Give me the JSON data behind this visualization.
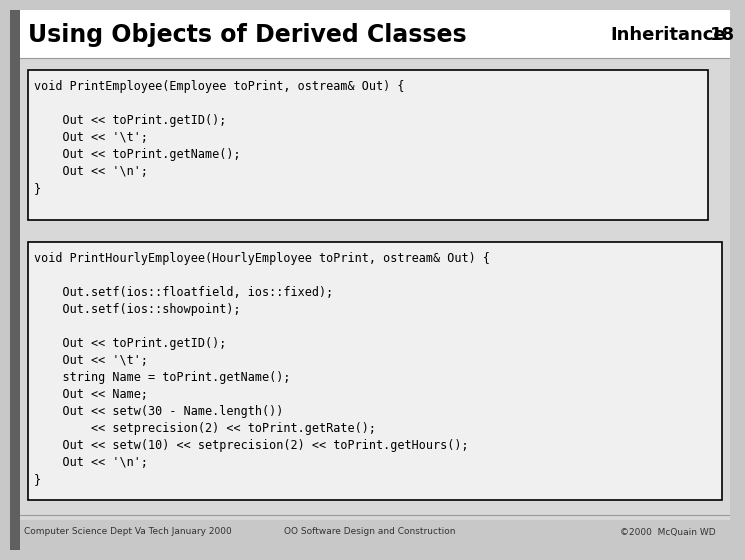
{
  "title": "Using Objects of Derived Classes",
  "title_right": "Inheritance",
  "slide_num": "18",
  "bg_color": "#c8c8c8",
  "content_bg": "#d8d8d8",
  "box_bg": "#f0f0f0",
  "box1_text": [
    "void PrintEmployee(Employee toPrint, ostream& Out) {",
    "",
    "    Out << toPrint.getID();",
    "    Out << '\\t';",
    "    Out << toPrint.getName();",
    "    Out << '\\n';",
    "}"
  ],
  "box2_text": [
    "void PrintHourlyEmployee(HourlyEmployee toPrint, ostream& Out) {",
    "",
    "    Out.setf(ios::floatfield, ios::fixed);",
    "    Out.setf(ios::showpoint);",
    "",
    "    Out << toPrint.getID();",
    "    Out << '\\t';",
    "    string Name = toPrint.getName();",
    "    Out << Name;",
    "    Out << setw(30 - Name.length())",
    "        << setprecision(2) << toPrint.getRate();",
    "    Out << setw(10) << setprecision(2) << toPrint.getHours();",
    "    Out << '\\n';",
    "}"
  ],
  "footer_left": "Computer Science Dept Va Tech January 2000",
  "footer_center": "OO Software Design and Construction",
  "footer_right": "©2000  McQuain WD"
}
